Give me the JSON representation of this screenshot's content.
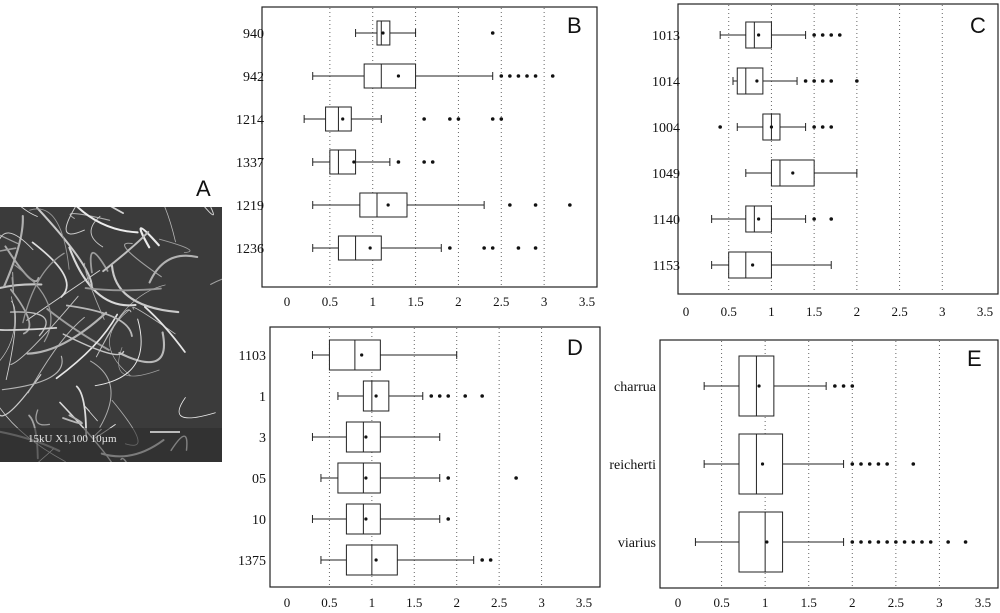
{
  "panel_labels": {
    "A": "A",
    "B": "B",
    "C": "C",
    "D": "D",
    "E": "E"
  },
  "micrograph": {
    "scale_text": "15kU   X1,100   10µm"
  },
  "chart_data": [
    {
      "panel": "B",
      "type": "box",
      "orientation": "horizontal",
      "xlim": [
        0,
        3.5
      ],
      "x_ticks": [
        "0",
        "0.5",
        "1",
        "1.5",
        "2",
        "2.5",
        "3",
        "3.5"
      ],
      "grid": "vertical dotted",
      "categories": [
        "940",
        "942",
        "1214",
        "1337",
        "1219",
        "1236"
      ],
      "series": [
        {
          "label": "940",
          "whisker_low": 0.8,
          "q1": 1.05,
          "median": 1.1,
          "q3": 1.2,
          "whisker_high": 1.5,
          "mean": 1.12,
          "outliers": [
            2.4
          ]
        },
        {
          "label": "942",
          "whisker_low": 0.3,
          "q1": 0.9,
          "median": 1.1,
          "q3": 1.5,
          "whisker_high": 2.4,
          "mean": 1.3,
          "outliers": [
            2.5,
            2.6,
            2.7,
            2.8,
            2.9,
            3.1
          ]
        },
        {
          "label": "1214",
          "whisker_low": 0.2,
          "q1": 0.45,
          "median": 0.6,
          "q3": 0.75,
          "whisker_high": 1.1,
          "mean": 0.65,
          "outliers": [
            1.6,
            1.9,
            2.0,
            2.4,
            2.5
          ]
        },
        {
          "label": "1337",
          "whisker_low": 0.3,
          "q1": 0.5,
          "median": 0.6,
          "q3": 0.8,
          "whisker_high": 1.2,
          "mean": 0.78,
          "outliers": [
            1.3,
            1.6,
            1.7
          ]
        },
        {
          "label": "1219",
          "whisker_low": 0.3,
          "q1": 0.85,
          "median": 1.05,
          "q3": 1.4,
          "whisker_high": 2.3,
          "mean": 1.18,
          "outliers": [
            2.6,
            2.9,
            3.3
          ]
        },
        {
          "label": "1236",
          "whisker_low": 0.3,
          "q1": 0.6,
          "median": 0.8,
          "q3": 1.1,
          "whisker_high": 1.8,
          "mean": 0.97,
          "outliers": [
            1.9,
            2.3,
            2.4,
            2.7,
            2.9
          ]
        }
      ]
    },
    {
      "panel": "C",
      "type": "box",
      "orientation": "horizontal",
      "xlim": [
        0,
        3.5
      ],
      "x_ticks": [
        "0",
        "0.5",
        "1",
        "1.5",
        "2",
        "2.5",
        "3",
        "3.5"
      ],
      "grid": "vertical dotted",
      "categories": [
        "1013",
        "1014",
        "1004",
        "1049",
        "1140",
        "1153"
      ],
      "series": [
        {
          "label": "1013",
          "whisker_low": 0.4,
          "q1": 0.7,
          "median": 0.8,
          "q3": 1.0,
          "whisker_high": 1.4,
          "mean": 0.85,
          "outliers": [
            1.5,
            1.6,
            1.7,
            1.8
          ]
        },
        {
          "label": "1014",
          "whisker_low": 0.55,
          "q1": 0.6,
          "median": 0.7,
          "q3": 0.9,
          "whisker_high": 1.3,
          "mean": 0.83,
          "outliers": [
            1.4,
            1.5,
            1.6,
            1.7,
            2.0
          ]
        },
        {
          "label": "1004",
          "whisker_low": 0.6,
          "q1": 0.9,
          "median": 1.0,
          "q3": 1.1,
          "whisker_high": 1.4,
          "mean": 1.0,
          "outliers": [
            0.4,
            1.5,
            1.6,
            1.7
          ]
        },
        {
          "label": "1049",
          "whisker_low": 0.7,
          "q1": 1.0,
          "median": 1.1,
          "q3": 1.5,
          "whisker_high": 2.0,
          "mean": 1.25,
          "outliers": []
        },
        {
          "label": "1140",
          "whisker_low": 0.3,
          "q1": 0.7,
          "median": 0.8,
          "q3": 1.0,
          "whisker_high": 1.4,
          "mean": 0.85,
          "outliers": [
            1.5,
            1.7
          ]
        },
        {
          "label": "1153",
          "whisker_low": 0.3,
          "q1": 0.5,
          "median": 0.7,
          "q3": 1.0,
          "whisker_high": 1.7,
          "mean": 0.78,
          "outliers": []
        }
      ]
    },
    {
      "panel": "D",
      "type": "box",
      "orientation": "horizontal",
      "xlim": [
        0,
        3.5
      ],
      "x_ticks": [
        "0",
        "0.5",
        "1",
        "1.5",
        "2",
        "2.5",
        "3",
        "3.5"
      ],
      "grid": "vertical dotted",
      "categories": [
        "1103",
        "1",
        "3",
        "05",
        "10",
        "1375"
      ],
      "series": [
        {
          "label": "1103",
          "whisker_low": 0.3,
          "q1": 0.5,
          "median": 0.8,
          "q3": 1.1,
          "whisker_high": 2.0,
          "mean": 0.88,
          "outliers": []
        },
        {
          "label": "1",
          "whisker_low": 0.6,
          "q1": 0.9,
          "median": 1.0,
          "q3": 1.2,
          "whisker_high": 1.6,
          "mean": 1.05,
          "outliers": [
            1.7,
            1.8,
            1.9,
            2.1,
            2.3
          ]
        },
        {
          "label": "3",
          "whisker_low": 0.3,
          "q1": 0.7,
          "median": 0.9,
          "q3": 1.1,
          "whisker_high": 1.8,
          "mean": 0.93,
          "outliers": []
        },
        {
          "label": "05",
          "whisker_low": 0.4,
          "q1": 0.6,
          "median": 0.9,
          "q3": 1.1,
          "whisker_high": 1.8,
          "mean": 0.93,
          "outliers": [
            1.9,
            2.7
          ]
        },
        {
          "label": "10",
          "whisker_low": 0.3,
          "q1": 0.7,
          "median": 0.9,
          "q3": 1.1,
          "whisker_high": 1.8,
          "mean": 0.93,
          "outliers": [
            1.9
          ]
        },
        {
          "label": "1375",
          "whisker_low": 0.4,
          "q1": 0.7,
          "median": 1.0,
          "q3": 1.3,
          "whisker_high": 2.2,
          "mean": 1.05,
          "outliers": [
            2.3,
            2.4
          ]
        }
      ]
    },
    {
      "panel": "E",
      "type": "box",
      "orientation": "horizontal",
      "xlim": [
        0,
        3.5
      ],
      "x_ticks": [
        "0",
        "0.5",
        "1",
        "1.5",
        "2",
        "2.5",
        "3",
        "3.5"
      ],
      "grid": "vertical dotted",
      "categories": [
        "charrua",
        "reicherti",
        "viarius"
      ],
      "series": [
        {
          "label": "charrua",
          "whisker_low": 0.3,
          "q1": 0.7,
          "median": 0.9,
          "q3": 1.1,
          "whisker_high": 1.7,
          "mean": 0.93,
          "outliers": [
            1.8,
            1.9,
            2.0
          ]
        },
        {
          "label": "reicherti",
          "whisker_low": 0.3,
          "q1": 0.7,
          "median": 0.9,
          "q3": 1.2,
          "whisker_high": 1.9,
          "mean": 0.97,
          "outliers": [
            2.0,
            2.1,
            2.2,
            2.3,
            2.4,
            2.7
          ]
        },
        {
          "label": "viarius",
          "whisker_low": 0.2,
          "q1": 0.7,
          "median": 1.0,
          "q3": 1.2,
          "whisker_high": 1.9,
          "mean": 1.02,
          "outliers": [
            2.0,
            2.1,
            2.2,
            2.3,
            2.4,
            2.5,
            2.6,
            2.7,
            2.8,
            2.9,
            3.1,
            3.3
          ]
        }
      ]
    }
  ]
}
